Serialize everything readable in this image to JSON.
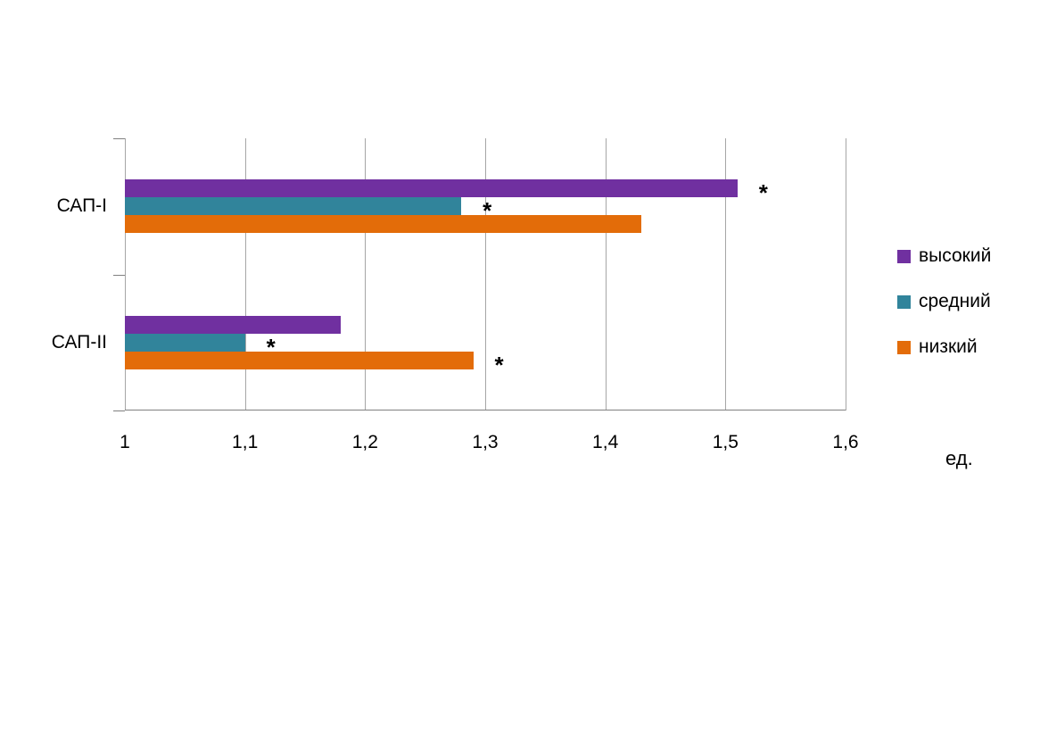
{
  "chart_data": {
    "type": "bar",
    "orientation": "horizontal",
    "title": "",
    "categories": [
      "САП-I",
      "САП-II"
    ],
    "series": [
      {
        "name": "высокий",
        "color": "#7030A0",
        "values": [
          1.51,
          1.18
        ],
        "asterisk": [
          true,
          false
        ]
      },
      {
        "name": "средний",
        "color": "#31849B",
        "values": [
          1.28,
          1.1
        ],
        "asterisk": [
          true,
          true
        ]
      },
      {
        "name": "низкий",
        "color": "#E36C09",
        "values": [
          1.43,
          1.29
        ],
        "asterisk": [
          false,
          true
        ]
      }
    ],
    "x_axis": {
      "range": [
        1,
        1.6
      ],
      "tick_labels": [
        "1",
        "1,1",
        "1,2",
        "1,3",
        "1,4",
        "1,5",
        "1,6"
      ],
      "unit_label": "ед."
    },
    "grid": true,
    "legend_position": "right",
    "significance_marker": "*",
    "background_color": "#ffffff",
    "gridline_color": "#a6a6a6"
  }
}
